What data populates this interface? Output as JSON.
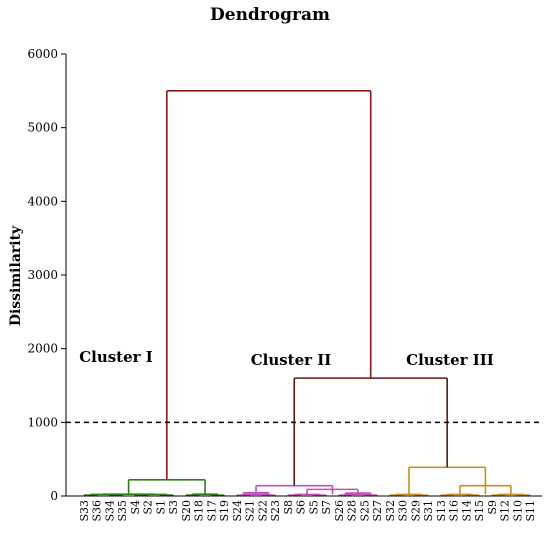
{
  "chart_data": {
    "type": "dendrogram",
    "title": "Dendrogram",
    "xlabel": "",
    "ylabel": "Dissimilarity",
    "ylim": [
      0,
      6000
    ],
    "yticks": [
      0,
      1000,
      2000,
      3000,
      4000,
      5000,
      6000
    ],
    "grid": false,
    "cut_line": 1000,
    "leaves": [
      "S33",
      "S36",
      "S34",
      "S35",
      "S4",
      "S2",
      "S1",
      "S3",
      "S20",
      "S18",
      "S17",
      "S19",
      "S24",
      "S21",
      "S22",
      "S23",
      "S8",
      "S6",
      "S5",
      "S7",
      "S26",
      "S28",
      "S25",
      "S27",
      "S32",
      "S30",
      "S29",
      "S31",
      "S13",
      "S16",
      "S14",
      "S15",
      "S9",
      "S12",
      "S10",
      "S11"
    ],
    "clusters": [
      {
        "label": "Cluster I",
        "color": "#2e7d1a",
        "leaves": [
          "S33",
          "S36",
          "S34",
          "S35",
          "S4",
          "S2",
          "S1",
          "S3",
          "S20",
          "S18",
          "S17",
          "S19"
        ]
      },
      {
        "label": "Cluster II",
        "color": "#c050b8",
        "leaves": [
          "S24",
          "S21",
          "S22",
          "S23",
          "S8",
          "S6",
          "S5",
          "S7",
          "S26",
          "S28",
          "S25",
          "S27"
        ]
      },
      {
        "label": "Cluster III",
        "color": "#c8901c",
        "leaves": [
          "S32",
          "S30",
          "S29",
          "S31",
          "S13",
          "S16",
          "S14",
          "S15",
          "S9",
          "S12",
          "S10",
          "S11"
        ]
      }
    ],
    "merges": [
      {
        "left": [
          "S33",
          "S36",
          "S34",
          "S35",
          "S4",
          "S2",
          "S1",
          "S3"
        ],
        "right": [
          "S20",
          "S18",
          "S17",
          "S19"
        ],
        "height": 220,
        "color": "#2e7d1a"
      },
      {
        "left": [
          "S33",
          "S36",
          "S34",
          "S35"
        ],
        "right": [
          "S4",
          "S2",
          "S1",
          "S3"
        ],
        "height": 25,
        "color": "#2e7d1a"
      },
      {
        "left": [
          "S20",
          "S18"
        ],
        "right": [
          "S17",
          "S19"
        ],
        "height": 25,
        "color": "#2e7d1a"
      },
      {
        "left": [
          "S24",
          "S21",
          "S22",
          "S23"
        ],
        "right": [
          "S8",
          "S6",
          "S5",
          "S7",
          "S26",
          "S28",
          "S25",
          "S27"
        ],
        "height": 140,
        "color": "#c050b8"
      },
      {
        "left": [
          "S24",
          "S21"
        ],
        "right": [
          "S22",
          "S23"
        ],
        "height": 45,
        "color": "#c050b8"
      },
      {
        "left": [
          "S8",
          "S6",
          "S5",
          "S7"
        ],
        "right": [
          "S26",
          "S28",
          "S25",
          "S27"
        ],
        "height": 90,
        "color": "#c050b8"
      },
      {
        "left": [
          "S26",
          "S28"
        ],
        "right": [
          "S25",
          "S27"
        ],
        "height": 40,
        "color": "#c050b8"
      },
      {
        "left": [
          "S32",
          "S30",
          "S29",
          "S31"
        ],
        "right": [
          "S13",
          "S16",
          "S14",
          "S15",
          "S9",
          "S12",
          "S10",
          "S11"
        ],
        "height": 390,
        "color": "#c8901c"
      },
      {
        "left": [
          "S13",
          "S16",
          "S14",
          "S15"
        ],
        "right": [
          "S9",
          "S12",
          "S10",
          "S11"
        ],
        "height": 140,
        "color": "#c8901c"
      },
      {
        "left": [
          "Cluster II"
        ],
        "right": [
          "Cluster III"
        ],
        "height": 1600,
        "color": "#5a1a0e"
      },
      {
        "left": [
          "Cluster I"
        ],
        "right": [
          "Cluster II",
          "Cluster III"
        ],
        "height": 5500,
        "color": "#8b1a1a"
      }
    ]
  }
}
